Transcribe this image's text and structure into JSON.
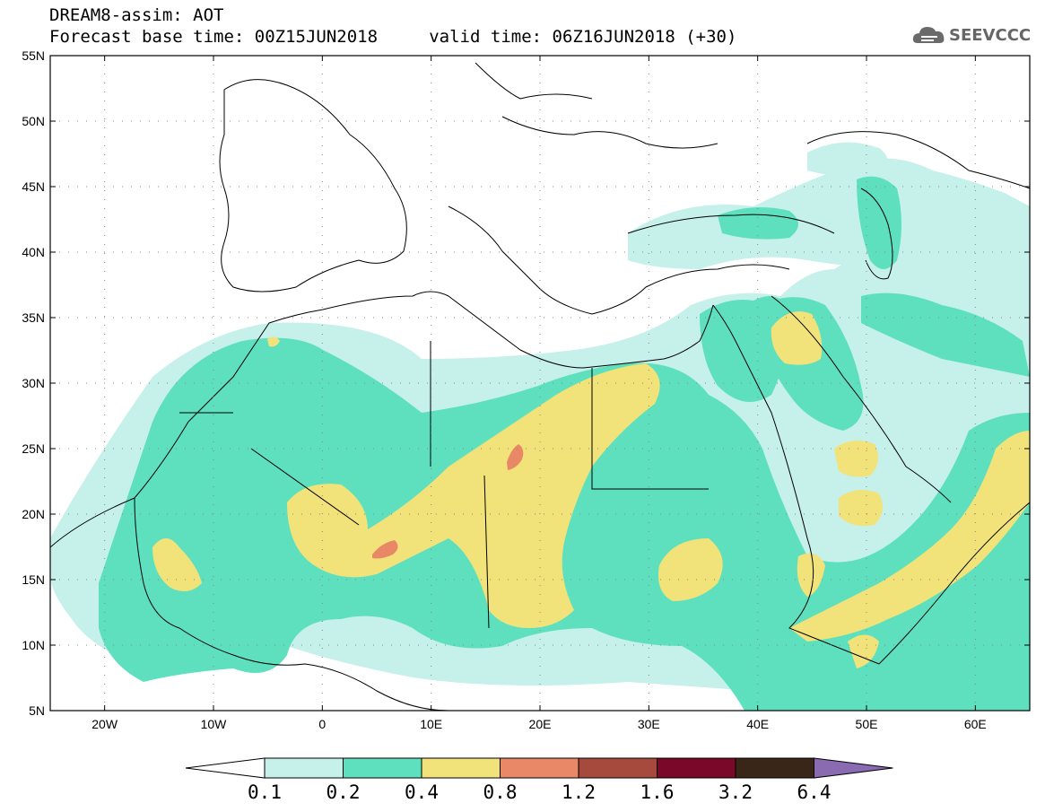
{
  "header": {
    "title_line1": "DREAM8-assim: AOT",
    "title_line2": "Forecast base time: 00Z15JUN2018     valid time: 06Z16JUN2018 (+30)"
  },
  "logo": {
    "text": "SEEVCCC",
    "icon": "cloud-logo-icon",
    "color": "#6a6a6a"
  },
  "map": {
    "lon_range": [
      -25,
      65
    ],
    "lat_range": [
      5,
      55
    ],
    "lat_ticks": [
      "55N",
      "50N",
      "45N",
      "40N",
      "35N",
      "30N",
      "25N",
      "20N",
      "15N",
      "10N",
      "5N"
    ],
    "lon_ticks": [
      "20W",
      "10W",
      "0",
      "10E",
      "20E",
      "30E",
      "40E",
      "50E",
      "60E"
    ],
    "grid": "dotted"
  },
  "legend": {
    "labels": [
      "0.1",
      "0.2",
      "0.4",
      "0.8",
      "1.2",
      "1.6",
      "3.2",
      "6.4"
    ],
    "colors": [
      "#c6f0ea",
      "#5ee0be",
      "#f2e27a",
      "#e88866",
      "#a64a3e",
      "#7a0828",
      "#3a2618",
      "#8a6ab0"
    ]
  }
}
